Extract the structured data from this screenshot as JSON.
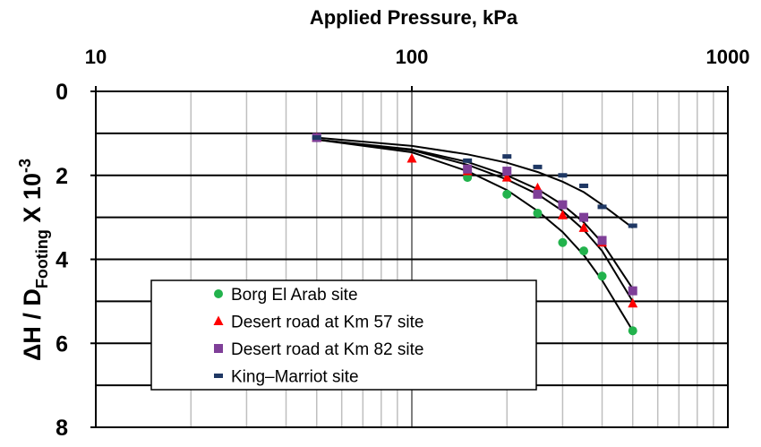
{
  "chart_data": {
    "type": "scatter",
    "title": "",
    "xlabel": "Applied Pressure, kPa",
    "ylabel_parts": {
      "prefix": "ΔH / D",
      "subscript": "Footing",
      "suffix": " X 10",
      "superscript": "-3"
    },
    "x_scale": "log",
    "x_position": "top",
    "xlim": [
      10,
      1000
    ],
    "ylim": [
      0,
      8
    ],
    "y_inverted": true,
    "x_ticks": [
      10,
      100,
      1000
    ],
    "x_tick_labels": [
      "10",
      "100",
      "1000"
    ],
    "y_ticks": [
      0,
      2,
      4,
      6,
      8
    ],
    "y_tick_labels": [
      "0",
      "2",
      "4",
      "6",
      "8"
    ],
    "grid": true,
    "legend_position": "bottom-left",
    "series": [
      {
        "name": "Borg El Arab site",
        "marker": "circle",
        "color": "#22b24c",
        "points": [
          [
            50,
            1.1
          ],
          [
            150,
            2.05
          ],
          [
            200,
            2.45
          ],
          [
            250,
            2.9
          ],
          [
            300,
            3.6
          ],
          [
            350,
            3.8
          ],
          [
            400,
            4.4
          ],
          [
            500,
            5.7
          ]
        ]
      },
      {
        "name": "Desert road at Km 57 site",
        "marker": "triangle",
        "color": "#ff0000",
        "points": [
          [
            50,
            1.1
          ],
          [
            100,
            1.6
          ],
          [
            150,
            1.9
          ],
          [
            200,
            2.05
          ],
          [
            250,
            2.3
          ],
          [
            300,
            2.95
          ],
          [
            350,
            3.25
          ],
          [
            400,
            3.6
          ],
          [
            500,
            5.05
          ]
        ]
      },
      {
        "name": "Desert road at Km 82 site",
        "marker": "square",
        "color": "#7f3f98",
        "points": [
          [
            50,
            1.1
          ],
          [
            150,
            1.85
          ],
          [
            200,
            1.9
          ],
          [
            250,
            2.45
          ],
          [
            300,
            2.7
          ],
          [
            350,
            3.0
          ],
          [
            400,
            3.55
          ],
          [
            500,
            4.75
          ]
        ]
      },
      {
        "name": "King–Marriot site",
        "marker": "dash",
        "color": "#1f3864",
        "points": [
          [
            50,
            1.1
          ],
          [
            150,
            1.65
          ],
          [
            200,
            1.55
          ],
          [
            250,
            1.8
          ],
          [
            300,
            2.0
          ],
          [
            350,
            2.25
          ],
          [
            400,
            2.75
          ],
          [
            500,
            3.2
          ]
        ]
      }
    ],
    "trend_lines": [
      {
        "series": "Borg El Arab site",
        "points": [
          [
            50,
            1.15
          ],
          [
            100,
            1.45
          ],
          [
            150,
            1.9
          ],
          [
            200,
            2.35
          ],
          [
            250,
            2.85
          ],
          [
            300,
            3.35
          ],
          [
            350,
            3.9
          ],
          [
            400,
            4.5
          ],
          [
            500,
            5.7
          ]
        ]
      },
      {
        "series": "Desert road at Km 57 site",
        "points": [
          [
            50,
            1.15
          ],
          [
            100,
            1.4
          ],
          [
            150,
            1.75
          ],
          [
            200,
            2.1
          ],
          [
            250,
            2.45
          ],
          [
            300,
            2.85
          ],
          [
            350,
            3.3
          ],
          [
            400,
            3.8
          ],
          [
            500,
            5.0
          ]
        ]
      },
      {
        "series": "Desert road at Km 82 site",
        "points": [
          [
            50,
            1.15
          ],
          [
            100,
            1.38
          ],
          [
            150,
            1.68
          ],
          [
            200,
            2.0
          ],
          [
            250,
            2.33
          ],
          [
            300,
            2.7
          ],
          [
            350,
            3.12
          ],
          [
            400,
            3.6
          ],
          [
            500,
            4.7
          ]
        ]
      },
      {
        "series": "King–Marriot site",
        "points": [
          [
            50,
            1.1
          ],
          [
            100,
            1.3
          ],
          [
            150,
            1.5
          ],
          [
            200,
            1.7
          ],
          [
            250,
            1.92
          ],
          [
            300,
            2.15
          ],
          [
            350,
            2.4
          ],
          [
            400,
            2.7
          ],
          [
            500,
            3.25
          ]
        ]
      }
    ]
  }
}
